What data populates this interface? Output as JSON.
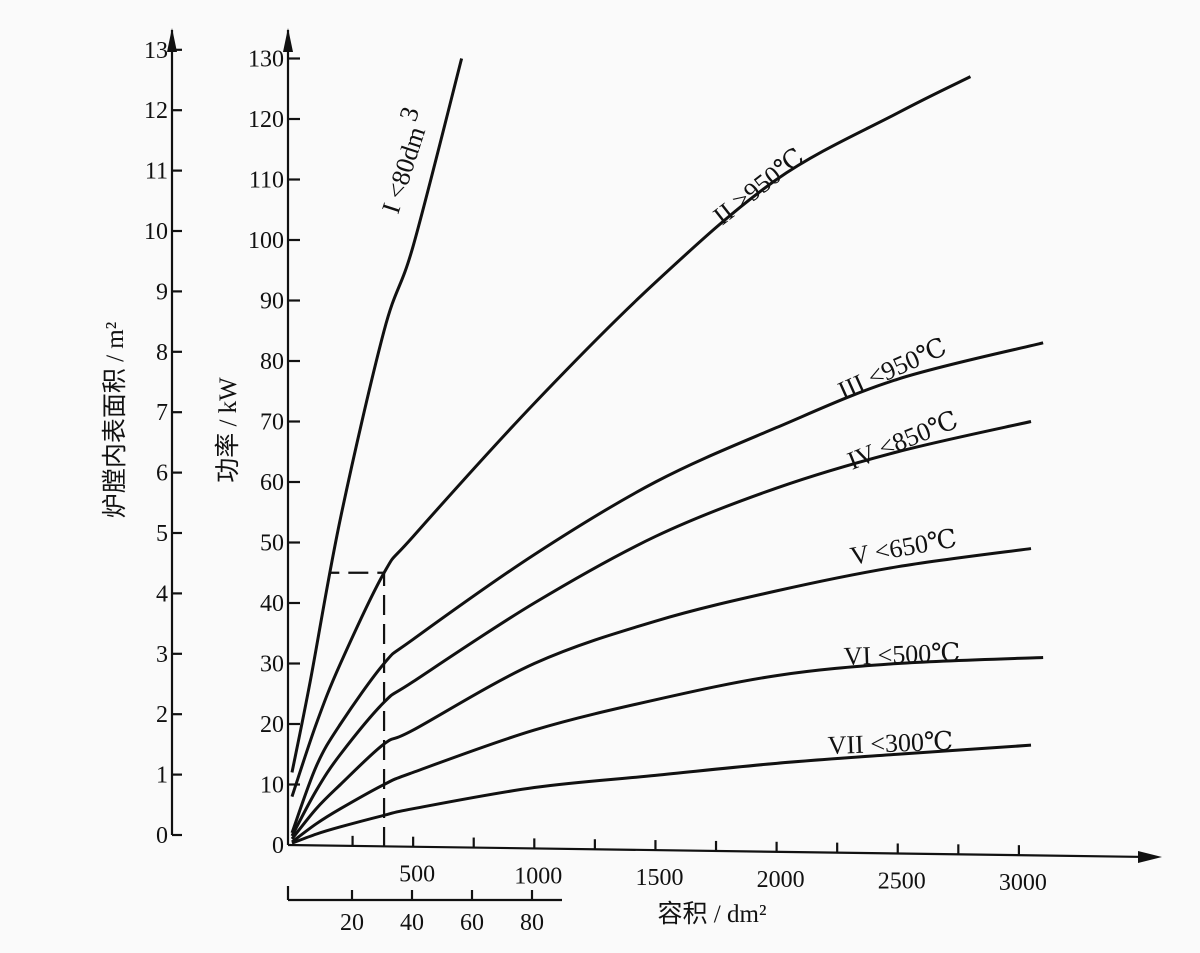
{
  "chart_data": {
    "type": "line",
    "xlabel": "容积 / dm²",
    "ylabel": "功率 / kW",
    "y2label": "炉膛内表面积 / m²",
    "xlim": [
      0,
      3500
    ],
    "ylim": [
      0,
      130
    ],
    "y2lim": [
      0,
      13
    ],
    "x_ticks": [
      500,
      1000,
      1500,
      2000,
      2500,
      3000
    ],
    "x_minor_step": 250,
    "y_ticks": [
      0,
      10,
      20,
      30,
      40,
      50,
      60,
      70,
      80,
      90,
      100,
      110,
      120,
      130
    ],
    "y2_ticks": [
      0,
      1,
      2,
      3,
      4,
      5,
      6,
      7,
      8,
      9,
      10,
      11,
      12,
      13
    ],
    "x2_ticks": [
      20,
      40,
      60,
      80
    ],
    "x2_range": [
      0,
      90
    ],
    "origin_label": "0",
    "grid": false,
    "series": [
      {
        "name": "I <80dm³",
        "label_main": "I <80dm",
        "label_sup": "3",
        "x": [
          0,
          75,
          200,
          380,
          500,
          700
        ],
        "y": [
          12,
          27,
          54,
          85,
          99,
          130
        ]
      },
      {
        "name": "II >950℃",
        "label_main": "II >950℃",
        "x": [
          0,
          100,
          200,
          380,
          500,
          1000,
          1500,
          2000,
          2500,
          2800
        ],
        "y": [
          8,
          20,
          30,
          45,
          51,
          73,
          93,
          110,
          121,
          127
        ]
      },
      {
        "name": "III <950℃",
        "label_main": "III <950℃",
        "x": [
          0,
          100,
          200,
          380,
          500,
          1000,
          1500,
          2000,
          2500,
          3100
        ],
        "y": [
          2,
          13,
          20,
          30,
          34,
          48,
          60,
          69,
          77,
          83
        ]
      },
      {
        "name": "IV <850℃",
        "label_main": "IV <850℃",
        "x": [
          0,
          100,
          200,
          380,
          500,
          1000,
          1500,
          2000,
          2500,
          3050
        ],
        "y": [
          1.5,
          9,
          15,
          23.6,
          27,
          40,
          51,
          59,
          65,
          70
        ]
      },
      {
        "name": "V <650℃",
        "label_main": "V <650℃",
        "x": [
          0,
          100,
          200,
          380,
          500,
          1000,
          1500,
          2000,
          2500,
          3050
        ],
        "y": [
          1,
          6,
          10,
          16.7,
          19,
          30,
          37,
          42,
          46,
          49
        ]
      },
      {
        "name": "VI <500℃",
        "label_main": "VI <500℃",
        "x": [
          0,
          100,
          200,
          380,
          500,
          1000,
          1500,
          2000,
          2500,
          3100
        ],
        "y": [
          0.5,
          3.5,
          6,
          10,
          12,
          19,
          24,
          28,
          30,
          31
        ]
      },
      {
        "name": "VII <300℃",
        "label_main": "VII <300℃",
        "x": [
          0,
          100,
          200,
          380,
          500,
          1000,
          1500,
          2000,
          2500,
          3050
        ],
        "y": [
          0.3,
          1.8,
          3,
          4.9,
          6,
          9.5,
          11.5,
          13.5,
          15,
          16.5
        ]
      }
    ],
    "annotation": {
      "type": "dashed-guide",
      "x": 380,
      "y": 45
    }
  }
}
